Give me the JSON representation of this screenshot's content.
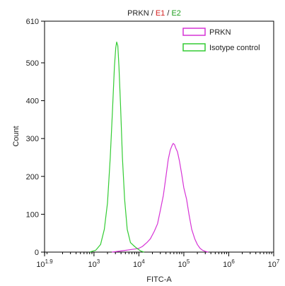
{
  "chart_data": {
    "type": "line",
    "title_parts": [
      {
        "text": "PRKN",
        "color": "#222222"
      },
      {
        "text": " / ",
        "color": "#222222"
      },
      {
        "text": "E1",
        "color": "#d42020"
      },
      {
        "text": " / ",
        "color": "#222222"
      },
      {
        "text": "E2",
        "color": "#1e9e1e"
      }
    ],
    "xlabel": "FITC-A",
    "ylabel": "Count",
    "x_scale": "log",
    "xlim": [
      79.43,
      10000000
    ],
    "ylim": [
      0,
      610
    ],
    "x_ticks": [
      {
        "value": 79.43,
        "base": "10",
        "exp": "1.9"
      },
      {
        "value": 1000,
        "base": "10",
        "exp": "3"
      },
      {
        "value": 10000,
        "base": "10",
        "exp": "4"
      },
      {
        "value": 100000,
        "base": "10",
        "exp": "5"
      },
      {
        "value": 1000000,
        "base": "10",
        "exp": "6"
      },
      {
        "value": 10000000,
        "base": "10",
        "exp": "7"
      }
    ],
    "y_ticks": [
      0,
      100,
      200,
      300,
      400,
      500,
      610
    ],
    "grid": false,
    "legend_position": "top-right",
    "series": [
      {
        "name": "PRKN",
        "color": "#d633d6",
        "x": [
          2500,
          4000,
          6000,
          8000,
          10000,
          12000,
          15000,
          18000,
          22000,
          26000,
          30000,
          35000,
          40000,
          45000,
          50000,
          55000,
          58000,
          62000,
          66000,
          72000,
          80000,
          90000,
          100000,
          115000,
          130000,
          150000,
          175000,
          200000,
          230000,
          260000,
          300000,
          350000
        ],
        "y": [
          0,
          3,
          6,
          8,
          10,
          15,
          25,
          35,
          55,
          75,
          110,
          150,
          200,
          245,
          270,
          282,
          287,
          284,
          275,
          265,
          240,
          205,
          170,
          140,
          100,
          60,
          35,
          20,
          10,
          5,
          2,
          0
        ]
      },
      {
        "name": "Isotype control",
        "color": "#33cc33",
        "x": [
          800,
          1100,
          1400,
          1700,
          2000,
          2300,
          2600,
          2850,
          3050,
          3200,
          3400,
          3600,
          3900,
          4300,
          4800,
          5500,
          6500,
          8000,
          9500,
          11000,
          13000
        ],
        "y": [
          0,
          5,
          20,
          60,
          130,
          250,
          380,
          490,
          540,
          555,
          545,
          490,
          390,
          250,
          140,
          60,
          25,
          15,
          8,
          3,
          0
        ]
      }
    ]
  }
}
